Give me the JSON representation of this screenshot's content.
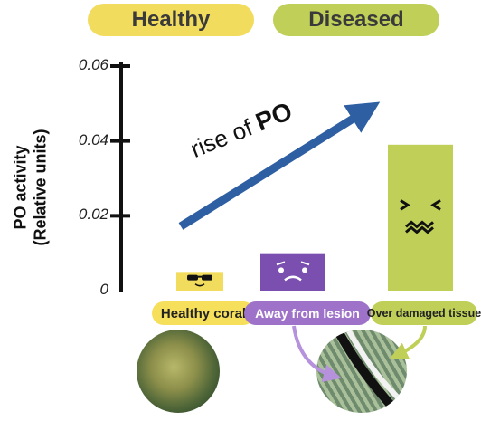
{
  "headers": {
    "healthy": "Healthy",
    "diseased": "Diseased"
  },
  "y_axis_label": [
    "PO activity",
    "(Relative units)"
  ],
  "annotation": {
    "text": "rise of",
    "emphasis": "PO"
  },
  "colors": {
    "healthy": "#f2dc5e",
    "away": "#7a4fb0",
    "over": "#bfcf58",
    "arrow": "#2f5fa3"
  },
  "chart_data": {
    "type": "bar",
    "categories": [
      "Healthy coral",
      "Away from lesion",
      "Over damaged tissue"
    ],
    "values": [
      0.005,
      0.01,
      0.039
    ],
    "ylabel": "PO activity (Relative units)",
    "ylim": [
      0,
      0.06
    ],
    "yticks": [
      0,
      0.02,
      0.04,
      0.06
    ],
    "ytick_labels": [
      "0",
      "0.02",
      "0.04",
      "0.06"
    ],
    "groups": [
      "Healthy",
      "Diseased",
      "Diseased"
    ],
    "bar_colors": [
      "#f2dc5e",
      "#7a4fb0",
      "#bfcf58"
    ],
    "bar_faces": [
      "sunglasses-face",
      "worried-face",
      "sick-face"
    ]
  }
}
